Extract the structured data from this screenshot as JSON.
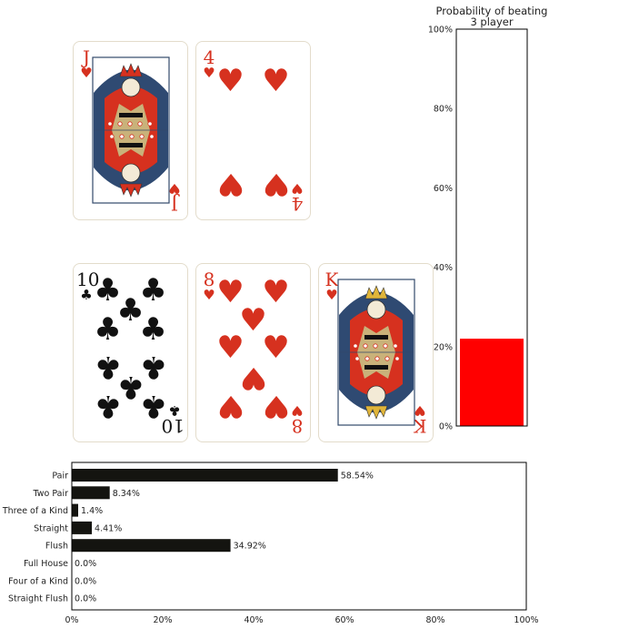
{
  "cards": [
    {
      "rank": "J",
      "suit": "♥",
      "color": "#d6311f",
      "kind": "face"
    },
    {
      "rank": "4",
      "suit": "♥",
      "color": "#d6311f",
      "kind": "pips"
    },
    {
      "rank": "10",
      "suit": "♣",
      "color": "#111111",
      "kind": "pips"
    },
    {
      "rank": "8",
      "suit": "♥",
      "color": "#d6311f",
      "kind": "pips"
    },
    {
      "rank": "K",
      "suit": "♥",
      "color": "#d6311f",
      "kind": "face"
    }
  ],
  "chart_data": [
    {
      "type": "bar",
      "orientation": "vertical",
      "title": "Probability of beating\n3 player",
      "value": 22,
      "ylim": [
        0,
        100
      ],
      "yticks": [
        "0%",
        "20%",
        "40%",
        "60%",
        "80%",
        "100%"
      ],
      "bar_color": "#ff0000"
    },
    {
      "type": "bar",
      "orientation": "horizontal",
      "categories": [
        "Pair",
        "Two Pair",
        "Three of a Kind",
        "Straight",
        "Flush",
        "Full House",
        "Four of a Kind",
        "Straight Flush"
      ],
      "values": [
        58.54,
        8.34,
        1.4,
        4.41,
        34.92,
        0.0,
        0.0,
        0.0
      ],
      "value_labels": [
        "58.54%",
        "8.34%",
        "1.4%",
        "4.41%",
        "34.92%",
        "0.0%",
        "0.0%",
        "0.0%"
      ],
      "xlim": [
        0,
        100
      ],
      "xticks": [
        "0%",
        "20%",
        "40%",
        "60%",
        "80%",
        "100%"
      ],
      "bar_color": "#141410"
    }
  ]
}
